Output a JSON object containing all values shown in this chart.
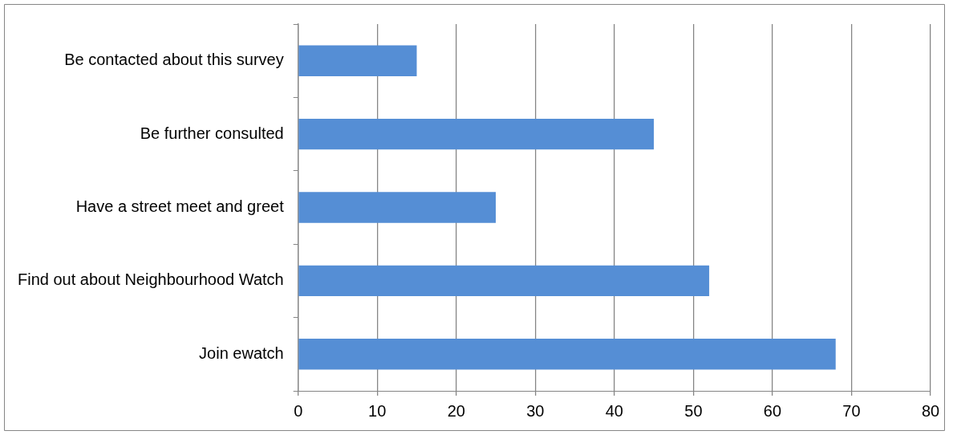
{
  "chart_data": {
    "type": "bar",
    "orientation": "horizontal",
    "categories": [
      "Be contacted about this survey",
      "Be further consulted",
      "Have a street meet and greet",
      "Find out about Neighbourhood Watch",
      "Join ewatch"
    ],
    "values": [
      15,
      45,
      25,
      52,
      68
    ],
    "color": "#558ed5",
    "xlim": [
      0,
      80
    ],
    "xticks": [
      0,
      10,
      20,
      30,
      40,
      50,
      60,
      70,
      80
    ],
    "grid": "x",
    "legend": false
  }
}
